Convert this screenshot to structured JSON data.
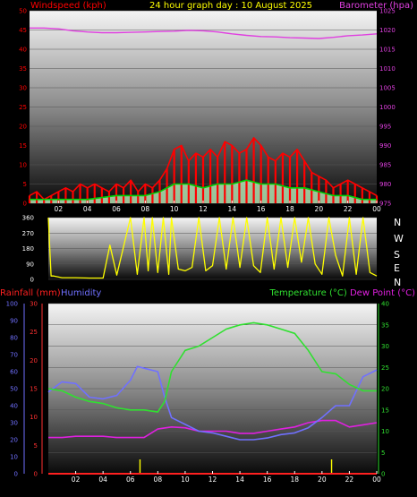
{
  "title": "24 hour graph day : 10 August 2025",
  "colors": {
    "background": "#000000",
    "wind": "#ff0000",
    "wind_avg": "#00d000",
    "wind_band": "#c8ffc8",
    "barometer": "#e040e0",
    "direction": "#ffff00",
    "rain": "#ff2020",
    "rain_axis": "#ff3030",
    "humidity": "#7070ff",
    "temperature": "#30e030",
    "dew_point": "#e020e0",
    "text": "#ffffff",
    "title": "#ffff00"
  },
  "x_tick_labels": [
    "02",
    "04",
    "06",
    "08",
    "10",
    "12",
    "14",
    "16",
    "18",
    "20",
    "22",
    "00"
  ],
  "chart_data": [
    {
      "type": "line",
      "name": "wind-barometer",
      "x_unit": "hour",
      "xlim": [
        0,
        24
      ],
      "left_axis": {
        "label": "Windspeed (kph)",
        "ylim": [
          0,
          50
        ],
        "ticks": [
          0,
          5,
          10,
          15,
          20,
          25,
          30,
          35,
          40,
          45,
          50
        ]
      },
      "right_axis": {
        "label": "Barometer (hpa)",
        "ylim": [
          975,
          1025
        ],
        "ticks": [
          975,
          980,
          985,
          990,
          995,
          1000,
          1005,
          1010,
          1015,
          1020,
          1025
        ]
      },
      "series": [
        {
          "name": "Windspeed",
          "axis": "left",
          "x": [
            0,
            0.5,
            1,
            1.5,
            2,
            2.5,
            3,
            3.5,
            4,
            4.5,
            5,
            5.5,
            6,
            6.5,
            7,
            7.5,
            8,
            8.5,
            9,
            9.5,
            10,
            10.5,
            11,
            11.5,
            12,
            12.5,
            13,
            13.5,
            14,
            14.5,
            15,
            15.5,
            16,
            16.5,
            17,
            17.5,
            18,
            18.5,
            19,
            19.5,
            20,
            20.5,
            21,
            21.5,
            22,
            22.5,
            23,
            23.5,
            24
          ],
          "values": [
            2,
            3,
            1,
            2,
            3,
            4,
            3,
            5,
            4,
            5,
            4,
            3,
            5,
            4,
            6,
            3,
            5,
            4,
            6,
            9,
            14,
            15,
            11,
            13,
            12,
            14,
            12,
            16,
            15,
            13,
            14,
            17,
            15,
            12,
            11,
            13,
            12,
            14,
            11,
            8,
            7,
            6,
            4,
            5,
            6,
            5,
            4,
            3,
            2
          ]
        },
        {
          "name": "Wind avg",
          "axis": "left",
          "x": [
            0,
            2,
            4,
            6,
            8,
            9,
            10,
            11,
            12,
            13,
            14,
            15,
            16,
            17,
            18,
            19,
            20,
            21,
            22,
            23,
            24
          ],
          "values": [
            1,
            1,
            1,
            2,
            2,
            3,
            5,
            5,
            4,
            5,
            5,
            6,
            5,
            5,
            4,
            4,
            3,
            2,
            2,
            1,
            1
          ]
        },
        {
          "name": "Barometer",
          "axis": "right",
          "x": [
            0,
            1,
            2,
            3,
            4,
            5,
            6,
            7,
            8,
            9,
            10,
            11,
            12,
            13,
            14,
            15,
            16,
            17,
            18,
            19,
            20,
            21,
            22,
            23,
            24
          ],
          "values": [
            1020.5,
            1020.5,
            1020.3,
            1019.8,
            1019.5,
            1019.3,
            1019.3,
            1019.4,
            1019.5,
            1019.6,
            1019.7,
            1019.9,
            1019.8,
            1019.5,
            1019.0,
            1018.6,
            1018.3,
            1018.2,
            1018.0,
            1017.9,
            1017.8,
            1018.1,
            1018.5,
            1018.7,
            1019.0
          ]
        }
      ]
    },
    {
      "type": "line",
      "name": "wind-direction",
      "xlim": [
        0,
        24
      ],
      "left_axis": {
        "ylim": [
          0,
          360
        ],
        "ticks": [
          0,
          90,
          180,
          270,
          360
        ]
      },
      "right_labels": [
        "N",
        "W",
        "S",
        "E",
        "N"
      ],
      "series": [
        {
          "name": "Direction",
          "x": [
            0,
            0.2,
            0.4,
            1,
            2,
            3,
            4,
            4.5,
            5,
            6,
            6.5,
            7,
            7.3,
            7.6,
            8,
            8.4,
            8.8,
            9,
            9.5,
            10,
            10.5,
            11,
            11.5,
            12,
            12.5,
            13,
            13.5,
            14,
            14.5,
            15,
            15.5,
            16,
            16.5,
            17,
            17.5,
            18,
            18.5,
            19,
            19.5,
            20,
            20.5,
            21,
            21.5,
            22,
            22.5,
            23,
            23.5,
            24
          ],
          "values": [
            360,
            20,
            20,
            10,
            10,
            8,
            8,
            200,
            25,
            360,
            30,
            360,
            50,
            360,
            40,
            360,
            30,
            360,
            60,
            50,
            70,
            360,
            50,
            80,
            360,
            60,
            360,
            70,
            360,
            80,
            40,
            360,
            60,
            360,
            70,
            360,
            100,
            360,
            90,
            30,
            360,
            140,
            20,
            360,
            30,
            360,
            40,
            20
          ]
        }
      ]
    },
    {
      "type": "line",
      "name": "temperature-humidity-rain",
      "xlim": [
        0,
        24
      ],
      "left_axis": {
        "label": "Rainfall (mm)",
        "ylim": [
          0,
          30
        ],
        "ticks": [
          0,
          5,
          10,
          15,
          20,
          25,
          30
        ]
      },
      "humidity_axis": {
        "label": "Humidity",
        "ylim": [
          0,
          100
        ],
        "ticks": [
          0,
          10,
          20,
          30,
          40,
          50,
          60,
          70,
          80,
          90,
          100
        ]
      },
      "right_axis": {
        "label": "Temperature (°C) Dew Point (°C)",
        "ylim": [
          0,
          40
        ],
        "ticks": [
          0,
          5,
          10,
          15,
          20,
          25,
          30,
          35,
          40
        ]
      },
      "series": [
        {
          "name": "Temperature",
          "axis": "right",
          "x": [
            0,
            1,
            2,
            3,
            4,
            5,
            6,
            7,
            8,
            8.5,
            9,
            10,
            11,
            12,
            13,
            14,
            15,
            16,
            17,
            18,
            19,
            20,
            21,
            22,
            23,
            24
          ],
          "values": [
            20,
            19.5,
            18,
            17,
            16.5,
            15.5,
            15,
            15,
            14.5,
            17,
            24,
            29,
            30,
            32,
            34,
            35,
            35.5,
            35,
            34,
            33,
            29,
            24,
            23.5,
            21,
            19.5,
            19.5
          ]
        },
        {
          "name": "Humidity",
          "axis": "humidity",
          "x": [
            0,
            1,
            2,
            3,
            4,
            5,
            6,
            6.5,
            7,
            8,
            8.5,
            9,
            10,
            11,
            12,
            13,
            14,
            15,
            16,
            17,
            18,
            19,
            20,
            21,
            22,
            23,
            24
          ],
          "values": [
            48,
            54,
            53,
            45,
            44,
            46,
            55,
            63,
            62,
            60,
            45,
            33,
            29,
            25,
            24,
            22,
            20,
            20,
            21,
            23,
            24,
            27,
            33,
            40,
            40,
            57,
            61
          ]
        },
        {
          "name": "Dew Point",
          "axis": "right",
          "x": [
            0,
            1,
            2,
            3,
            4,
            5,
            6,
            7,
            8,
            9,
            10,
            11,
            12,
            13,
            14,
            15,
            16,
            17,
            18,
            19,
            20,
            21,
            22,
            23,
            24
          ],
          "values": [
            8.5,
            8.5,
            8.8,
            8.8,
            8.8,
            8.5,
            8.5,
            8.5,
            10.5,
            11,
            10.8,
            10,
            10,
            10,
            9.5,
            9.5,
            10,
            10.5,
            11,
            12,
            12.5,
            12.5,
            11,
            11.5,
            12
          ]
        },
        {
          "name": "Rainfall",
          "axis": "left",
          "x": [
            0,
            24
          ],
          "values": [
            0,
            0
          ]
        }
      ]
    }
  ]
}
